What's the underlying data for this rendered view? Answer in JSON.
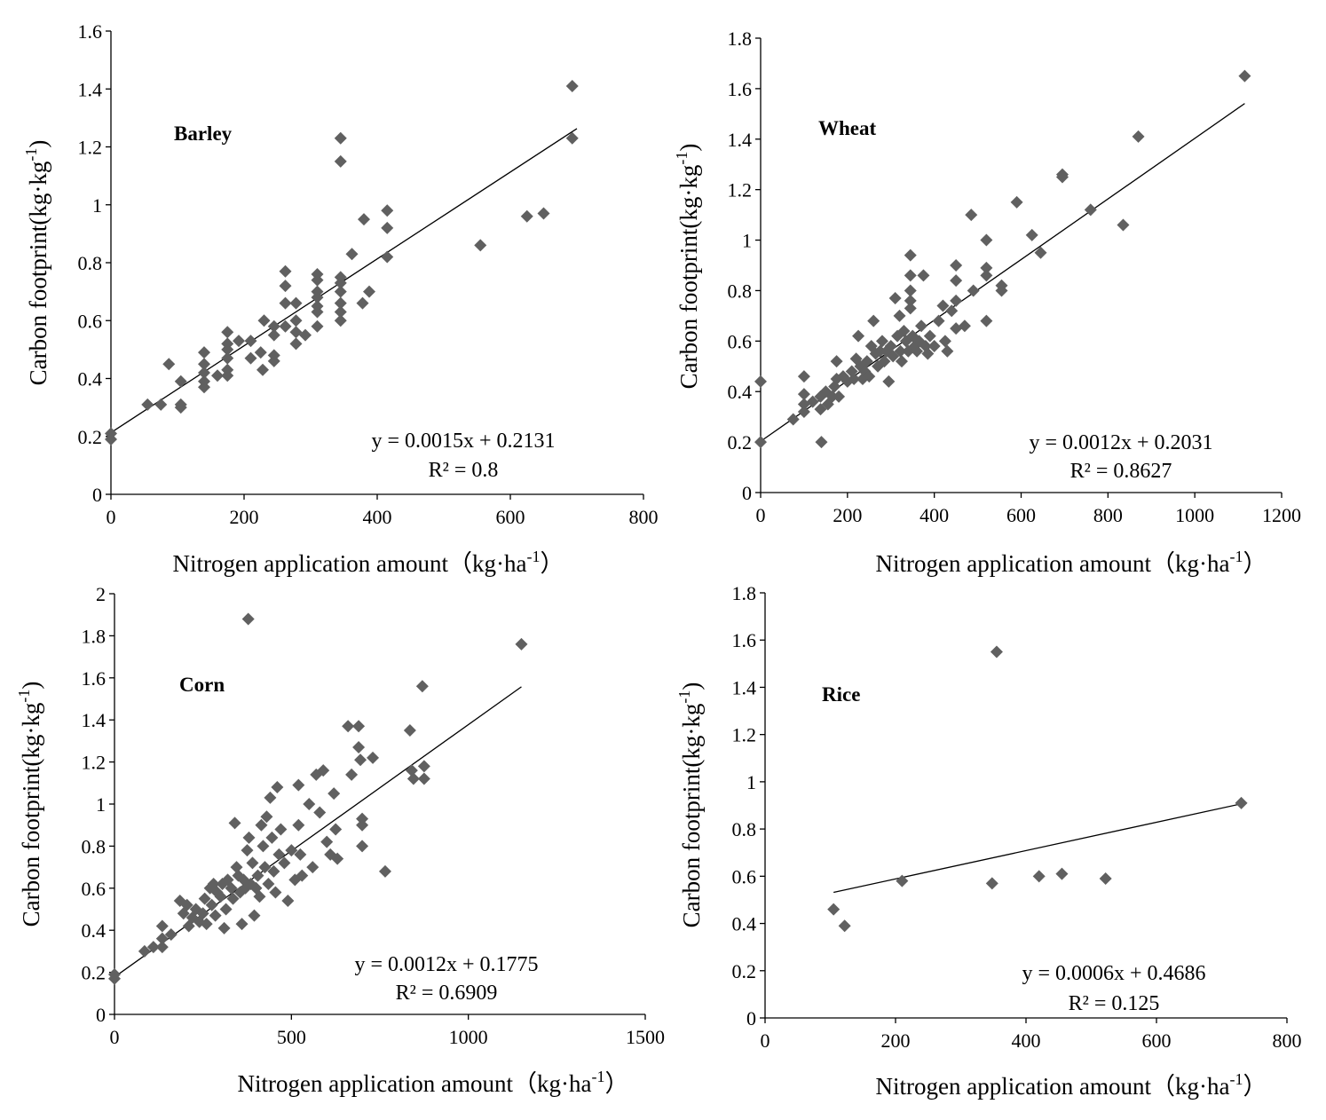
{
  "chart_data": [
    {
      "type": "scatter",
      "title": "Barley",
      "xlabel": "Nitrogen application amount（kg·ha",
      "xlabel_sup": "-1",
      "xlabel_end": "）",
      "ylabel": "Carbon footprint(kg·kg",
      "ylabel_sup": "-1",
      "ylabel_end": ")",
      "xlim": [
        0,
        800
      ],
      "ylim": [
        0,
        1.6
      ],
      "xticks": [
        0,
        200,
        400,
        600,
        800
      ],
      "xtick_labels": [
        "0",
        "200",
        "400",
        "600",
        "800"
      ],
      "yticks": [
        0,
        0.2,
        0.4,
        0.6,
        0.8,
        1,
        1.2,
        1.4,
        1.6
      ],
      "ytick_labels": [
        "0",
        "0.2",
        "0.4",
        "0.6",
        "0.8",
        "1",
        "1.2",
        "1.4",
        "1.6"
      ],
      "equation": "y = 0.0015x + 0.2131",
      "r_squared": "R² = 0.8",
      "trendline": {
        "slope": 0.0015,
        "intercept": 0.2131,
        "x_range": [
          0,
          700
        ]
      },
      "marker_color": "#606060",
      "points": [
        [
          0,
          0.21
        ],
        [
          0,
          0.19
        ],
        [
          55,
          0.31
        ],
        [
          75,
          0.31
        ],
        [
          87,
          0.45
        ],
        [
          105,
          0.39
        ],
        [
          105,
          0.31
        ],
        [
          105,
          0.3
        ],
        [
          140,
          0.49
        ],
        [
          140,
          0.45
        ],
        [
          140,
          0.42
        ],
        [
          140,
          0.39
        ],
        [
          140,
          0.37
        ],
        [
          160,
          0.41
        ],
        [
          175,
          0.56
        ],
        [
          175,
          0.52
        ],
        [
          175,
          0.5
        ],
        [
          175,
          0.47
        ],
        [
          175,
          0.43
        ],
        [
          175,
          0.41
        ],
        [
          192,
          0.53
        ],
        [
          210,
          0.53
        ],
        [
          210,
          0.47
        ],
        [
          225,
          0.49
        ],
        [
          228,
          0.43
        ],
        [
          230,
          0.6
        ],
        [
          245,
          0.58
        ],
        [
          245,
          0.55
        ],
        [
          245,
          0.48
        ],
        [
          245,
          0.46
        ],
        [
          262,
          0.77
        ],
        [
          262,
          0.72
        ],
        [
          262,
          0.66
        ],
        [
          262,
          0.58
        ],
        [
          278,
          0.66
        ],
        [
          278,
          0.6
        ],
        [
          278,
          0.56
        ],
        [
          278,
          0.52
        ],
        [
          292,
          0.55
        ],
        [
          310,
          0.76
        ],
        [
          310,
          0.74
        ],
        [
          310,
          0.7
        ],
        [
          310,
          0.68
        ],
        [
          310,
          0.65
        ],
        [
          310,
          0.63
        ],
        [
          310,
          0.58
        ],
        [
          345,
          1.23
        ],
        [
          345,
          1.15
        ],
        [
          345,
          0.75
        ],
        [
          345,
          0.73
        ],
        [
          345,
          0.7
        ],
        [
          345,
          0.66
        ],
        [
          345,
          0.63
        ],
        [
          345,
          0.6
        ],
        [
          362,
          0.83
        ],
        [
          378,
          0.66
        ],
        [
          380,
          0.95
        ],
        [
          388,
          0.7
        ],
        [
          415,
          0.98
        ],
        [
          415,
          0.92
        ],
        [
          415,
          0.82
        ],
        [
          555,
          0.86
        ],
        [
          625,
          0.96
        ],
        [
          650,
          0.97
        ],
        [
          693,
          1.41
        ],
        [
          693,
          1.23
        ]
      ]
    },
    {
      "type": "scatter",
      "title": "Wheat",
      "xlabel": "Nitrogen application amount（kg·ha",
      "xlabel_sup": "-1",
      "xlabel_end": "）",
      "ylabel": "Carbon footprint(kg·kg",
      "ylabel_sup": "-1",
      "ylabel_end": ")",
      "xlim": [
        0,
        1200
      ],
      "ylim": [
        0,
        1.8
      ],
      "xticks": [
        0,
        200,
        400,
        600,
        800,
        1000,
        1200
      ],
      "xtick_labels": [
        "0",
        "200",
        "400",
        "600",
        "800",
        "1000",
        "1200"
      ],
      "yticks": [
        0,
        0.2,
        0.4,
        0.6,
        0.8,
        1,
        1.2,
        1.4,
        1.6,
        1.8
      ],
      "ytick_labels": [
        "0",
        "0.2",
        "0.4",
        "0.6",
        "0.8",
        "1",
        "1.2",
        "1.4",
        "1.6",
        "1.8"
      ],
      "equation": "y = 0.0012x + 0.2031",
      "r_squared": "R² = 0.8627",
      "trendline": {
        "slope": 0.0012,
        "intercept": 0.2031,
        "x_range": [
          0,
          1115
        ]
      },
      "marker_color": "#606060",
      "points": [
        [
          0,
          0.44
        ],
        [
          0,
          0.2
        ],
        [
          75,
          0.29
        ],
        [
          100,
          0.46
        ],
        [
          100,
          0.39
        ],
        [
          100,
          0.35
        ],
        [
          100,
          0.32
        ],
        [
          120,
          0.36
        ],
        [
          138,
          0.38
        ],
        [
          138,
          0.33
        ],
        [
          140,
          0.2
        ],
        [
          150,
          0.4
        ],
        [
          155,
          0.35
        ],
        [
          165,
          0.38
        ],
        [
          170,
          0.42
        ],
        [
          175,
          0.45
        ],
        [
          175,
          0.52
        ],
        [
          180,
          0.38
        ],
        [
          190,
          0.46
        ],
        [
          200,
          0.44
        ],
        [
          210,
          0.48
        ],
        [
          215,
          0.45
        ],
        [
          220,
          0.53
        ],
        [
          225,
          0.62
        ],
        [
          230,
          0.5
        ],
        [
          235,
          0.45
        ],
        [
          240,
          0.48
        ],
        [
          245,
          0.52
        ],
        [
          250,
          0.46
        ],
        [
          255,
          0.58
        ],
        [
          260,
          0.68
        ],
        [
          265,
          0.55
        ],
        [
          270,
          0.5
        ],
        [
          275,
          0.56
        ],
        [
          280,
          0.6
        ],
        [
          285,
          0.52
        ],
        [
          290,
          0.56
        ],
        [
          295,
          0.44
        ],
        [
          300,
          0.58
        ],
        [
          305,
          0.54
        ],
        [
          310,
          0.77
        ],
        [
          315,
          0.62
        ],
        [
          320,
          0.7
        ],
        [
          322,
          0.56
        ],
        [
          325,
          0.52
        ],
        [
          330,
          0.64
        ],
        [
          335,
          0.6
        ],
        [
          340,
          0.56
        ],
        [
          345,
          0.94
        ],
        [
          345,
          0.86
        ],
        [
          345,
          0.8
        ],
        [
          345,
          0.76
        ],
        [
          345,
          0.73
        ],
        [
          350,
          0.62
        ],
        [
          355,
          0.58
        ],
        [
          360,
          0.56
        ],
        [
          365,
          0.6
        ],
        [
          370,
          0.66
        ],
        [
          375,
          0.86
        ],
        [
          380,
          0.58
        ],
        [
          385,
          0.55
        ],
        [
          390,
          0.62
        ],
        [
          400,
          0.58
        ],
        [
          410,
          0.68
        ],
        [
          420,
          0.74
        ],
        [
          425,
          0.6
        ],
        [
          430,
          0.56
        ],
        [
          440,
          0.72
        ],
        [
          450,
          0.9
        ],
        [
          450,
          0.84
        ],
        [
          450,
          0.76
        ],
        [
          450,
          0.65
        ],
        [
          470,
          0.66
        ],
        [
          485,
          1.1
        ],
        [
          490,
          0.8
        ],
        [
          520,
          1.0
        ],
        [
          520,
          0.89
        ],
        [
          520,
          0.86
        ],
        [
          520,
          0.68
        ],
        [
          555,
          0.82
        ],
        [
          555,
          0.8
        ],
        [
          590,
          1.15
        ],
        [
          625,
          1.02
        ],
        [
          645,
          0.95
        ],
        [
          695,
          1.26
        ],
        [
          695,
          1.25
        ],
        [
          760,
          1.12
        ],
        [
          835,
          1.06
        ],
        [
          870,
          1.41
        ],
        [
          1115,
          1.65
        ]
      ]
    },
    {
      "type": "scatter",
      "title": "Corn",
      "xlabel": "Nitrogen application amount（kg·ha",
      "xlabel_sup": "-1",
      "xlabel_end": "）",
      "ylabel": "Carbon footprint(kg·kg",
      "ylabel_sup": "-1",
      "ylabel_end": ")",
      "xlim": [
        0,
        1500
      ],
      "ylim": [
        0,
        2
      ],
      "xticks": [
        0,
        500,
        1000,
        1500
      ],
      "xtick_labels": [
        "0",
        "500",
        "1000",
        "1500"
      ],
      "yticks": [
        0,
        0.2,
        0.4,
        0.6,
        0.8,
        1,
        1.2,
        1.4,
        1.6,
        1.8,
        2
      ],
      "ytick_labels": [
        "0",
        "0.2",
        "0.4",
        "0.6",
        "0.8",
        "1",
        "1.2",
        "1.4",
        "1.6",
        "1.8",
        "2"
      ],
      "equation": "y = 0.0012x + 0.1775",
      "r_squared": "R² = 0.6909",
      "trendline": {
        "slope": 0.0012,
        "intercept": 0.1775,
        "x_range": [
          0,
          1150
        ]
      },
      "marker_color": "#606060",
      "points": [
        [
          0,
          0.19
        ],
        [
          0,
          0.17
        ],
        [
          85,
          0.3
        ],
        [
          110,
          0.32
        ],
        [
          135,
          0.42
        ],
        [
          135,
          0.36
        ],
        [
          135,
          0.32
        ],
        [
          160,
          0.38
        ],
        [
          185,
          0.54
        ],
        [
          195,
          0.48
        ],
        [
          205,
          0.52
        ],
        [
          210,
          0.42
        ],
        [
          220,
          0.46
        ],
        [
          230,
          0.5
        ],
        [
          240,
          0.44
        ],
        [
          250,
          0.48
        ],
        [
          255,
          0.55
        ],
        [
          260,
          0.43
        ],
        [
          270,
          0.6
        ],
        [
          275,
          0.52
        ],
        [
          280,
          0.62
        ],
        [
          285,
          0.47
        ],
        [
          290,
          0.58
        ],
        [
          300,
          0.56
        ],
        [
          305,
          0.62
        ],
        [
          310,
          0.41
        ],
        [
          315,
          0.5
        ],
        [
          320,
          0.64
        ],
        [
          330,
          0.6
        ],
        [
          335,
          0.55
        ],
        [
          340,
          0.91
        ],
        [
          345,
          0.7
        ],
        [
          350,
          0.66
        ],
        [
          355,
          0.58
        ],
        [
          360,
          0.43
        ],
        [
          365,
          0.64
        ],
        [
          370,
          0.6
        ],
        [
          375,
          0.78
        ],
        [
          378,
          1.88
        ],
        [
          380,
          0.84
        ],
        [
          385,
          0.62
        ],
        [
          390,
          0.72
        ],
        [
          395,
          0.47
        ],
        [
          400,
          0.6
        ],
        [
          405,
          0.66
        ],
        [
          410,
          0.56
        ],
        [
          415,
          0.9
        ],
        [
          420,
          0.8
        ],
        [
          425,
          0.7
        ],
        [
          430,
          0.94
        ],
        [
          435,
          0.62
        ],
        [
          440,
          1.03
        ],
        [
          445,
          0.84
        ],
        [
          450,
          0.68
        ],
        [
          455,
          0.58
        ],
        [
          460,
          1.08
        ],
        [
          465,
          0.76
        ],
        [
          470,
          0.88
        ],
        [
          480,
          0.72
        ],
        [
          490,
          0.54
        ],
        [
          500,
          0.78
        ],
        [
          510,
          0.64
        ],
        [
          520,
          1.09
        ],
        [
          520,
          0.9
        ],
        [
          525,
          0.76
        ],
        [
          530,
          0.66
        ],
        [
          550,
          1.0
        ],
        [
          560,
          0.7
        ],
        [
          570,
          1.14
        ],
        [
          580,
          0.96
        ],
        [
          590,
          1.16
        ],
        [
          600,
          0.82
        ],
        [
          610,
          0.76
        ],
        [
          620,
          1.05
        ],
        [
          625,
          0.88
        ],
        [
          630,
          0.74
        ],
        [
          660,
          1.37
        ],
        [
          670,
          1.14
        ],
        [
          690,
          1.37
        ],
        [
          690,
          1.27
        ],
        [
          695,
          1.21
        ],
        [
          700,
          0.93
        ],
        [
          700,
          0.9
        ],
        [
          700,
          0.8
        ],
        [
          730,
          1.22
        ],
        [
          765,
          0.68
        ],
        [
          835,
          1.35
        ],
        [
          840,
          1.16
        ],
        [
          845,
          1.12
        ],
        [
          870,
          1.56
        ],
        [
          875,
          1.18
        ],
        [
          875,
          1.12
        ],
        [
          1150,
          1.76
        ]
      ]
    },
    {
      "type": "scatter",
      "title": "Rice",
      "xlabel": "Nitrogen application amount（kg·ha",
      "xlabel_sup": "-1",
      "xlabel_end": "）",
      "ylabel": "Carbon footprint(kg·kg",
      "ylabel_sup": "-1",
      "ylabel_end": ")",
      "xlim": [
        0,
        800
      ],
      "ylim": [
        0,
        1.8
      ],
      "xticks": [
        0,
        200,
        400,
        600,
        800
      ],
      "xtick_labels": [
        "0",
        "200",
        "400",
        "600",
        "800"
      ],
      "yticks": [
        0,
        0.2,
        0.4,
        0.6,
        0.8,
        1,
        1.2,
        1.4,
        1.6,
        1.8
      ],
      "ytick_labels": [
        "0",
        "0.2",
        "0.4",
        "0.6",
        "0.8",
        "1",
        "1.2",
        "1.4",
        "1.6",
        "1.8"
      ],
      "equation": "y = 0.0006x + 0.4686",
      "r_squared": "R² = 0.125",
      "trendline": {
        "slope": 0.0006,
        "intercept": 0.4686,
        "x_range": [
          105,
          730
        ]
      },
      "marker_color": "#606060",
      "points": [
        [
          105,
          0.46
        ],
        [
          122,
          0.39
        ],
        [
          210,
          0.58
        ],
        [
          348,
          0.57
        ],
        [
          355,
          1.55
        ],
        [
          420,
          0.6
        ],
        [
          455,
          0.61
        ],
        [
          522,
          0.59
        ],
        [
          730,
          0.91
        ]
      ]
    }
  ]
}
